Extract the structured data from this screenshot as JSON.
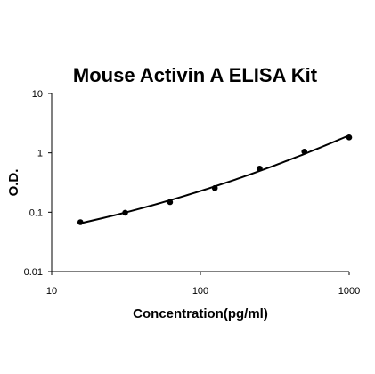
{
  "chart_data": {
    "type": "scatter",
    "title": "Mouse Activin A ELISA Kit",
    "xlabel": "Concentration(pg/ml)",
    "ylabel": "O.D.",
    "xscale": "log",
    "yscale": "log",
    "xlim": [
      10,
      1000
    ],
    "ylim": [
      0.01,
      10
    ],
    "xticks": [
      "10",
      "100",
      "1000"
    ],
    "yticks": [
      "0.01",
      "0.1",
      "1",
      "10"
    ],
    "grid": false,
    "legend": "none",
    "series": [
      {
        "points": [
          [
            15.6,
            0.068
          ],
          [
            31.2,
            0.098
          ],
          [
            62.5,
            0.148
          ],
          [
            125,
            0.255
          ],
          [
            250,
            0.545
          ],
          [
            500,
            1.05
          ],
          [
            1000,
            1.82
          ]
        ],
        "fit": "smooth curve",
        "color": "#000000"
      }
    ]
  }
}
